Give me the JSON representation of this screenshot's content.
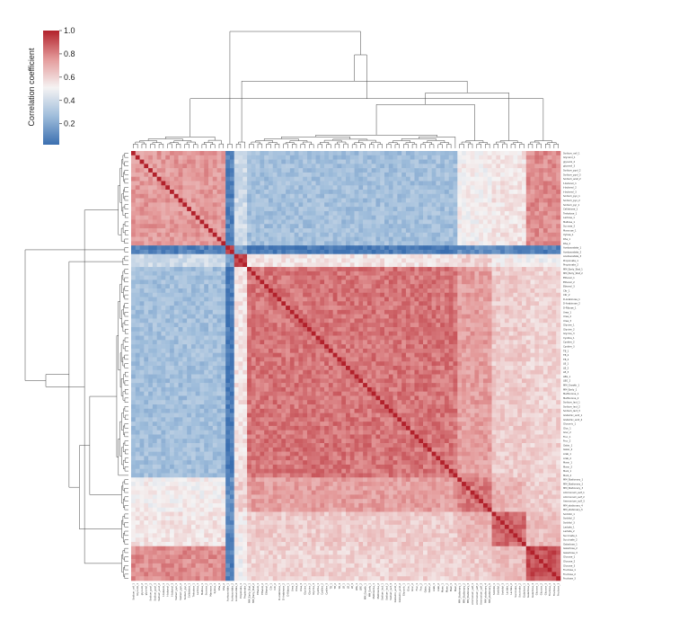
{
  "chart_data": {
    "type": "heatmap",
    "title": "",
    "xlabel": "",
    "ylabel": "",
    "colormap": "red-white-blue (blue = low, red = high)",
    "vmin": 0.02,
    "vmax": 1.0,
    "colorbar": {
      "label": "Correlation coefficient",
      "ticks": [
        "0.2",
        "0.4",
        "0.6",
        "0.8",
        "1.0"
      ],
      "tick_values": [
        0.2,
        0.4,
        0.6,
        0.8,
        1.0
      ],
      "position": "top-left"
    },
    "dendrograms": [
      "top",
      "left"
    ],
    "labels": [
      "Sodium_cell_1",
      "Glycerol_1",
      "glycerol_2",
      "glycerol_3",
      "Sodium_pyol_2",
      "Sodium_pyol_3",
      "Sodium_acet_2",
      "t-butanol_1",
      "t-butanol_2",
      "t-butanol_3",
      "Sodium_pyo_1",
      "Sodium_pyo_2",
      "Sodium_pyr_1",
      "Cellobiose_1",
      "Trehalose_1",
      "Lactose_1",
      "Maltose_1",
      "Sucrose_2",
      "Mannose_1",
      "Xylose_1",
      "Rha_1",
      "Rha_2",
      "Acetoacetate_1",
      "Acetoacetate_2",
      "Acetoacetate_3",
      "Propionate_1",
      "Propionate_2",
      "MM_Early_Stat_1",
      "MM_Early_Stat_2",
      "Ethanol_1",
      "Ethanol_2",
      "Ethanol_3",
      "Citr_1",
      "Citr_2",
      "D-Arabinose_1",
      "D-Arabinose_2",
      "D-Ribose_1",
      "Urea_1",
      "Urea_2",
      "Urea_3",
      "Glycine_1",
      "Glycine_2",
      "Glycine_3",
      "Cystine_1",
      "Cystine_2",
      "Cystine_3",
      "TB_1",
      "TB_2",
      "TB_3",
      "LB_1",
      "LB_2",
      "LB_3",
      "LBG_1",
      "LBG_2",
      "MM_Growth_1",
      "MM_Early_1",
      "Methionine_1",
      "Methionine_2",
      "Sodium_lact_1",
      "Sodium_lact_2",
      "Sodium_lact_3",
      "Glutamic_acid_1",
      "Glutamic_acid_2",
      "Gluconic_1",
      "Gluc_1",
      "Gluc_2",
      "Fruc_1",
      "Fruc_2",
      "Galac_1",
      "Galac_2",
      "Arab_1",
      "Arab_2",
      "Mann_1",
      "Mann_2",
      "Manl_1",
      "Manl_2",
      "MM_Stationary_1",
      "MM_Stationary_2",
      "MM_Stationary_3",
      "Ammonium_sulf_1",
      "Ammonium_sulf_2",
      "Ammonium_sulf_3",
      "MM_stationary_4",
      "MM_stationary_5",
      "Sorbitol_1",
      "Sorbitol_2",
      "Sorbitol_3",
      "Lactate_1",
      "Lactate_2",
      "Succinate_1",
      "Succinate_2",
      "Galactose_1",
      "Galactose_2",
      "Galactose_3",
      "Glucose_1",
      "Glucose_2",
      "Glucose_3",
      "Fructose_1",
      "Fructose_2",
      "Fructose_3"
    ],
    "matrix_description": "symmetric correlation matrix, diagonal = 1.0",
    "clusters": [
      {
        "rows": [
          0,
          21
        ],
        "within": 0.75
      },
      {
        "rows": [
          22,
          23
        ],
        "within": 0.95
      },
      {
        "rows": [
          24,
          26
        ],
        "within": 0.9
      },
      {
        "rows": [
          27,
          75
        ],
        "within": 0.83
      },
      {
        "rows": [
          76,
          83
        ],
        "within": 0.82
      },
      {
        "rows": [
          84,
          91
        ],
        "within": 0.85
      },
      {
        "rows": [
          92,
          99
        ],
        "within": 0.9
      }
    ],
    "between": [
      [
        1.0,
        0.08,
        0.4,
        0.28,
        0.52,
        0.55,
        0.78
      ],
      [
        0.08,
        1.0,
        0.15,
        0.05,
        0.12,
        0.1,
        0.08
      ],
      [
        0.4,
        0.15,
        1.0,
        0.55,
        0.6,
        0.52,
        0.5
      ],
      [
        0.28,
        0.05,
        0.55,
        1.0,
        0.74,
        0.62,
        0.6
      ],
      [
        0.52,
        0.12,
        0.6,
        0.74,
        1.0,
        0.68,
        0.62
      ],
      [
        0.55,
        0.1,
        0.52,
        0.62,
        0.68,
        1.0,
        0.66
      ],
      [
        0.78,
        0.08,
        0.5,
        0.6,
        0.62,
        0.66,
        1.0
      ]
    ]
  }
}
